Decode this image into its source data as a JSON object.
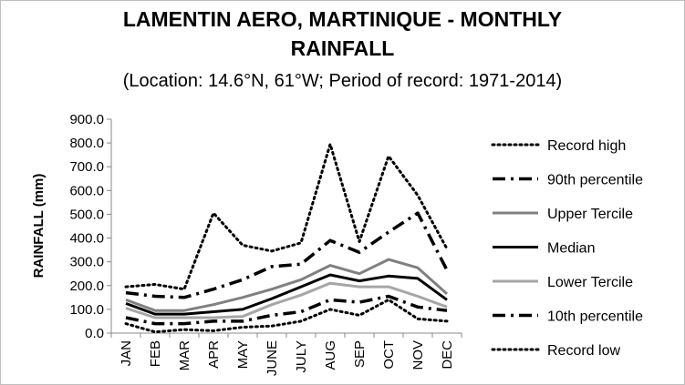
{
  "chart_data": {
    "type": "line",
    "title": "LAMENTIN AERO, MARTINIQUE - MONTHLY",
    "title_line2": "RAINFALL",
    "subtitle": "(Location: 14.6°N, 61°W; Period of record: 1971-2014)",
    "xlabel": "",
    "ylabel": "RAINFALL (mm)",
    "ylim": [
      0,
      900
    ],
    "yticks": [
      "0.0",
      "100.0",
      "200.0",
      "300.0",
      "400.0",
      "500.0",
      "600.0",
      "700.0",
      "800.0",
      "900.0"
    ],
    "categories": [
      "JAN",
      "FEB",
      "MAR",
      "APR",
      "MAY",
      "JUNE",
      "JULY",
      "AUG",
      "SEP",
      "OCT",
      "NOV",
      "DEC"
    ],
    "legend_position": "right",
    "grid": false,
    "series": [
      {
        "name": "Record high",
        "color": "#000000",
        "style": "dotted",
        "values": [
          195,
          205,
          185,
          505,
          370,
          345,
          380,
          795,
          385,
          745,
          580,
          355
        ]
      },
      {
        "name": "90th percentile",
        "color": "#000000",
        "style": "dashdot",
        "values": [
          170,
          155,
          150,
          185,
          225,
          280,
          290,
          390,
          340,
          425,
          505,
          265
        ]
      },
      {
        "name": "Upper Tercile",
        "color": "#808080",
        "style": "solid",
        "values": [
          140,
          95,
          95,
          120,
          150,
          185,
          225,
          285,
          250,
          310,
          275,
          165
        ]
      },
      {
        "name": "Median",
        "color": "#000000",
        "style": "solid",
        "values": [
          125,
          80,
          80,
          90,
          100,
          145,
          195,
          245,
          220,
          240,
          230,
          140
        ]
      },
      {
        "name": "Lower Tercile",
        "color": "#a6a6a6",
        "style": "solid",
        "values": [
          105,
          65,
          65,
          65,
          70,
          120,
          160,
          210,
          195,
          195,
          155,
          110
        ]
      },
      {
        "name": "10th percentile",
        "color": "#000000",
        "style": "dashdot",
        "values": [
          65,
          40,
          40,
          50,
          50,
          75,
          90,
          140,
          130,
          155,
          110,
          95
        ]
      },
      {
        "name": "Record low",
        "color": "#000000",
        "style": "dotted",
        "values": [
          40,
          5,
          15,
          10,
          25,
          30,
          50,
          100,
          75,
          140,
          60,
          50
        ]
      }
    ]
  }
}
